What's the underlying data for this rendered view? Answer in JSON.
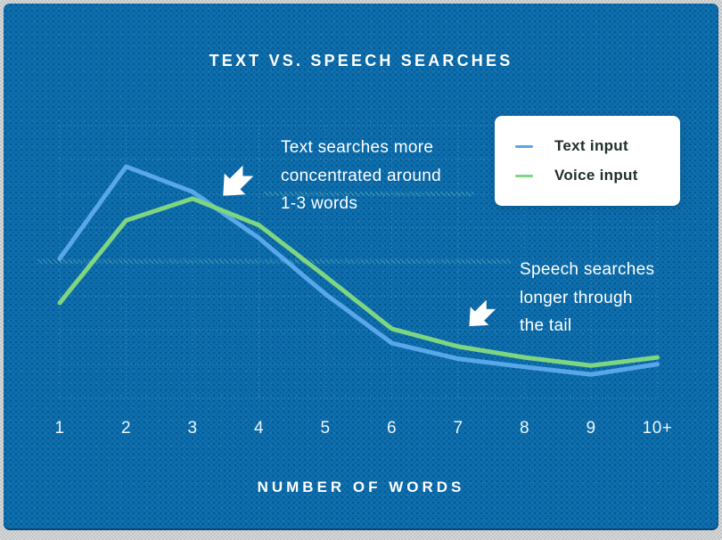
{
  "chart_data": {
    "type": "line",
    "title": "TEXT VS. SPEECH SEARCHES",
    "xlabel": "NUMBER OF WORDS",
    "ylabel": "",
    "categories": [
      "1",
      "2",
      "3",
      "4",
      "5",
      "6",
      "7",
      "8",
      "9",
      "10+"
    ],
    "series": [
      {
        "name": "Text input",
        "color": "#58a7ea",
        "values": [
          20.5,
          34.0,
          30.3,
          23.5,
          15.3,
          8.1,
          5.8,
          4.6,
          3.5,
          5.0
        ]
      },
      {
        "name": "Voice input",
        "color": "#7fd680",
        "values": [
          14.0,
          26.1,
          29.3,
          25.4,
          17.9,
          10.2,
          7.6,
          6.0,
          4.8,
          6.0
        ]
      }
    ],
    "ylim": [
      0,
      40
    ],
    "y_gridline_step": 5,
    "y_axis_labeled": false,
    "grid": true,
    "legend_position": "top-right",
    "annotations": [
      {
        "lines": [
          "Text searches more",
          "concentrated around",
          "1-3 words"
        ]
      },
      {
        "lines": [
          "Speech searches",
          "longer through",
          "the tail"
        ]
      }
    ]
  },
  "colors": {
    "card_background": "#0d70b0",
    "title_text": "#ffffff",
    "legend_background": "#ffffff",
    "legend_text": "#20302a",
    "text_input_line": "#58a7ea",
    "voice_input_line": "#7fd680",
    "gridline": "#7fd2cf"
  }
}
